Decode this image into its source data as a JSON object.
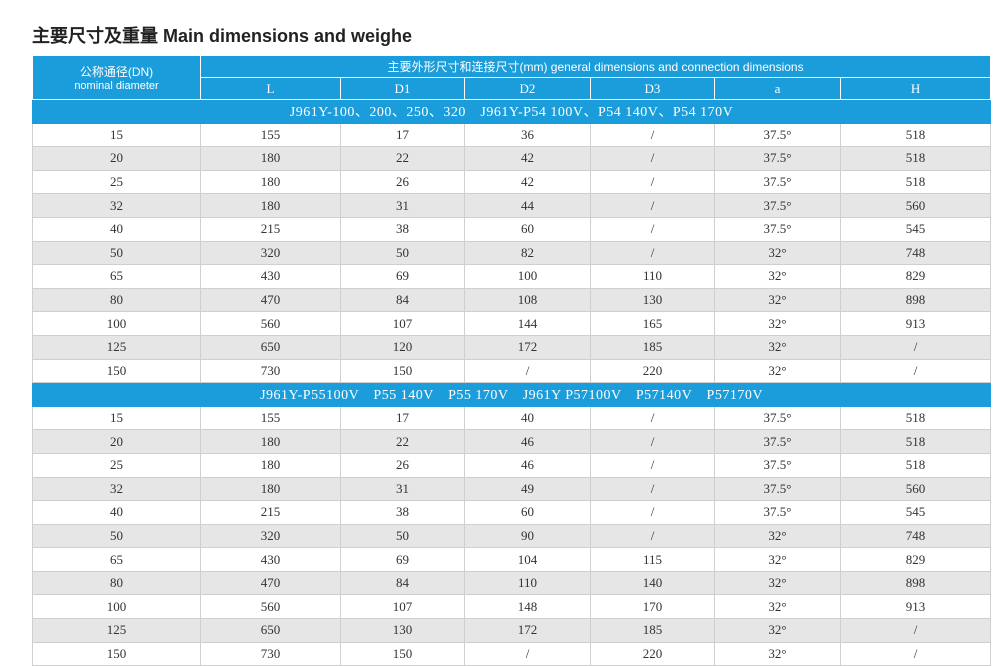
{
  "header": {
    "title": "主要尺寸及重量 Main dimensions and weighe"
  },
  "table": {
    "dn_label": "公称通径(DN)",
    "dn_label_en": "nominal diameter",
    "group_header": "主要外形尺寸和连接尺寸(mm) general dimensions and connection dimensions",
    "columns": [
      "L",
      "D1",
      "D2",
      "D3",
      "a",
      "H"
    ],
    "sections": [
      {
        "label": "J961Y-100、200、250、320　J961Y-P54 100V、P54 140V、P54 170V",
        "rows": [
          [
            "15",
            "155",
            "17",
            "36",
            "/",
            "37.5°",
            "518"
          ],
          [
            "20",
            "180",
            "22",
            "42",
            "/",
            "37.5°",
            "518"
          ],
          [
            "25",
            "180",
            "26",
            "42",
            "/",
            "37.5°",
            "518"
          ],
          [
            "32",
            "180",
            "31",
            "44",
            "/",
            "37.5°",
            "560"
          ],
          [
            "40",
            "215",
            "38",
            "60",
            "/",
            "37.5°",
            "545"
          ],
          [
            "50",
            "320",
            "50",
            "82",
            "/",
            "32°",
            "748"
          ],
          [
            "65",
            "430",
            "69",
            "100",
            "110",
            "32°",
            "829"
          ],
          [
            "80",
            "470",
            "84",
            "108",
            "130",
            "32°",
            "898"
          ],
          [
            "100",
            "560",
            "107",
            "144",
            "165",
            "32°",
            "913"
          ],
          [
            "125",
            "650",
            "120",
            "172",
            "185",
            "32°",
            "/"
          ],
          [
            "150",
            "730",
            "150",
            "/",
            "220",
            "32°",
            "/"
          ]
        ]
      },
      {
        "label": "J961Y-P55100V　P55 140V　P55 170V　J961Y P57100V　P57140V　P57170V",
        "rows": [
          [
            "15",
            "155",
            "17",
            "40",
            "/",
            "37.5°",
            "518"
          ],
          [
            "20",
            "180",
            "22",
            "46",
            "/",
            "37.5°",
            "518"
          ],
          [
            "25",
            "180",
            "26",
            "46",
            "/",
            "37.5°",
            "518"
          ],
          [
            "32",
            "180",
            "31",
            "49",
            "/",
            "37.5°",
            "560"
          ],
          [
            "40",
            "215",
            "38",
            "60",
            "/",
            "37.5°",
            "545"
          ],
          [
            "50",
            "320",
            "50",
            "90",
            "/",
            "32°",
            "748"
          ],
          [
            "65",
            "430",
            "69",
            "104",
            "115",
            "32°",
            "829"
          ],
          [
            "80",
            "470",
            "84",
            "110",
            "140",
            "32°",
            "898"
          ],
          [
            "100",
            "560",
            "107",
            "148",
            "170",
            "32°",
            "913"
          ],
          [
            "125",
            "650",
            "130",
            "172",
            "185",
            "32°",
            "/"
          ],
          [
            "150",
            "730",
            "150",
            "/",
            "220",
            "32°",
            "/"
          ]
        ]
      }
    ]
  }
}
